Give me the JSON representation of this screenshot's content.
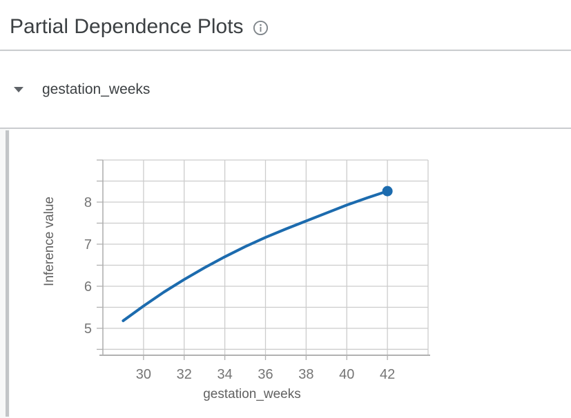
{
  "header": {
    "title": "Partial Dependence Plots"
  },
  "section": {
    "label": "gestation_weeks",
    "state": "expanded"
  },
  "chart_data": {
    "type": "line",
    "title": "",
    "xlabel": "gestation_weeks",
    "ylabel": "Inference value",
    "x_ticks": [
      30,
      32,
      34,
      36,
      38,
      40,
      42
    ],
    "y_ticks": [
      5,
      6,
      7,
      8
    ],
    "xlim": [
      28,
      44
    ],
    "ylim": [
      4.36,
      9.0
    ],
    "x_grid_step": 2,
    "y_grid_step": 0.5,
    "grid": true,
    "legend": "none",
    "series": [
      {
        "name": "gestation_weeks",
        "x": [
          29,
          30,
          31,
          32,
          33,
          34,
          35,
          36,
          37,
          38,
          39,
          40,
          41,
          42
        ],
        "y": [
          5.18,
          5.53,
          5.86,
          6.16,
          6.44,
          6.7,
          6.94,
          7.16,
          7.36,
          7.55,
          7.74,
          7.93,
          8.1,
          8.26
        ],
        "end_marker": true
      }
    ]
  },
  "colors": {
    "line": "#1c6bae",
    "grid": "#cccccc",
    "axis": "#b0b0b0",
    "tick_text": "#757575",
    "axis_title_text": "#616161",
    "heading_text": "#3c4043",
    "icon_gray": "#80868b"
  }
}
